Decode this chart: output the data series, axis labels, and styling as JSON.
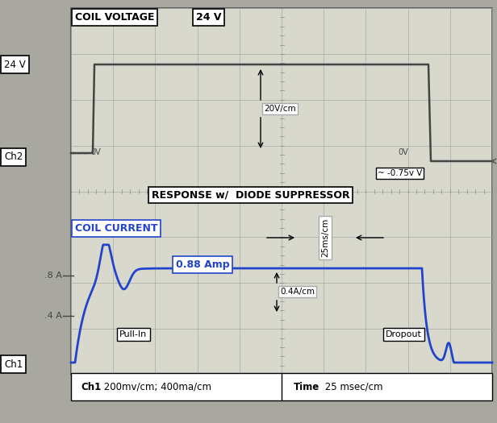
{
  "fig_bg": "#a8a8a0",
  "screen_bg": "#d8d8cc",
  "grid_color": "#aaaaaa",
  "grid_minor_color": "#bbbbaa",
  "voltage_label": "COIL VOLTAGE",
  "voltage_24v": "24 V",
  "voltage_scale": "20V/cm",
  "ch2_label": "Ch2",
  "neg_voltage_label": "~ -0.75v V",
  "left_24v_label": "24 V",
  "response_label": "RESPONSE w/  DIODE SUPPRESSOR",
  "coil_current_label": "COIL CURRENT",
  "current_088": "0.88 Amp",
  "current_scale": "0.4A/cm",
  "time_scale": "25ms/cm",
  "pull_in_label": "Pull-In",
  "dropout_label": "Dropout",
  "ch1_label": "Ch1",
  "point8A_label": ".8 A",
  "point4A_label": ".4 A",
  "bottom_left": "Ch1",
  "bottom_left2": " 200mv/cm; 400ma/cm",
  "bottom_right": "Time",
  "bottom_right2": " 25 msec/cm"
}
